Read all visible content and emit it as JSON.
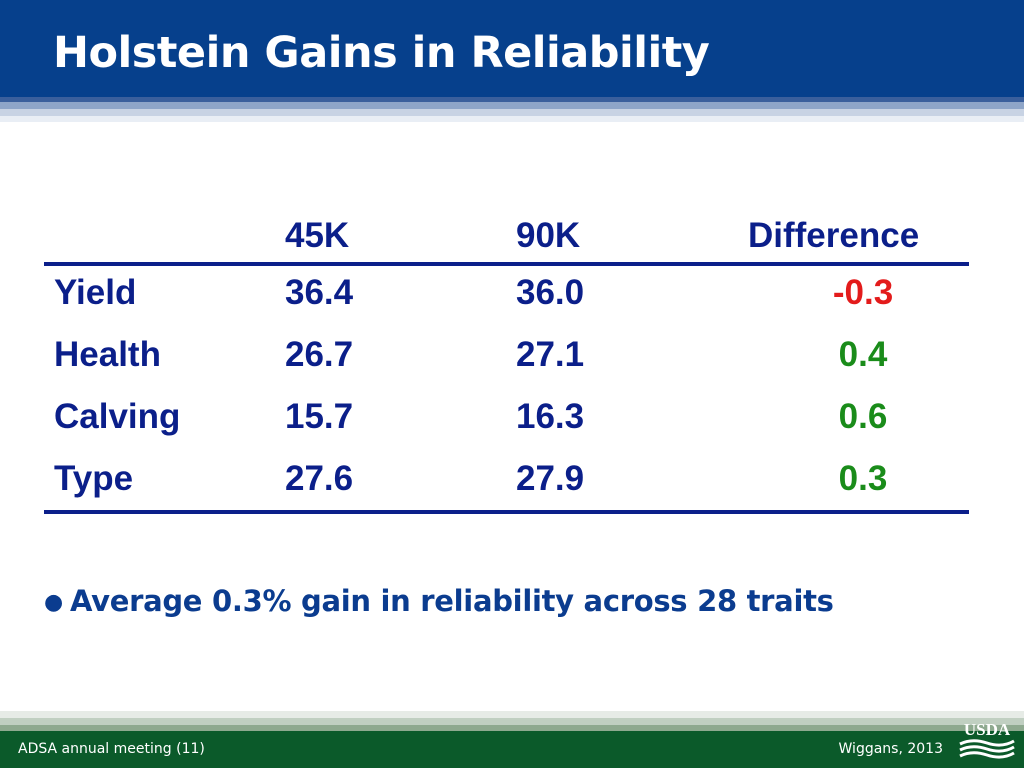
{
  "slide": {
    "title": "Holstein Gains in Reliability"
  },
  "table": {
    "headers": [
      "",
      "45K",
      "90K",
      "Difference"
    ],
    "rows": [
      {
        "label": "Yield",
        "k45": "36.4",
        "k90": "36.0",
        "diff": "-0.3"
      },
      {
        "label": "Health",
        "k45": "26.7",
        "k90": "27.1",
        "diff": "0.4"
      },
      {
        "label": "Calving",
        "k45": "15.7",
        "k90": "16.3",
        "diff": "0.6"
      },
      {
        "label": "Type",
        "k45": "27.6",
        "k90": "27.9",
        "diff": "0.3"
      }
    ]
  },
  "bullets": [
    "Average 0.3% gain in reliability across 28 traits"
  ],
  "footer": {
    "left": "ADSA annual meeting  (11)",
    "right": "Wiggans, 2013",
    "logo_text": "USDA"
  },
  "colors": {
    "header": "#06408c",
    "table_text": "#0b1f8a",
    "negative": "#e31b1b",
    "positive": "#1a8c1a",
    "footer": "#0b5a2a"
  }
}
